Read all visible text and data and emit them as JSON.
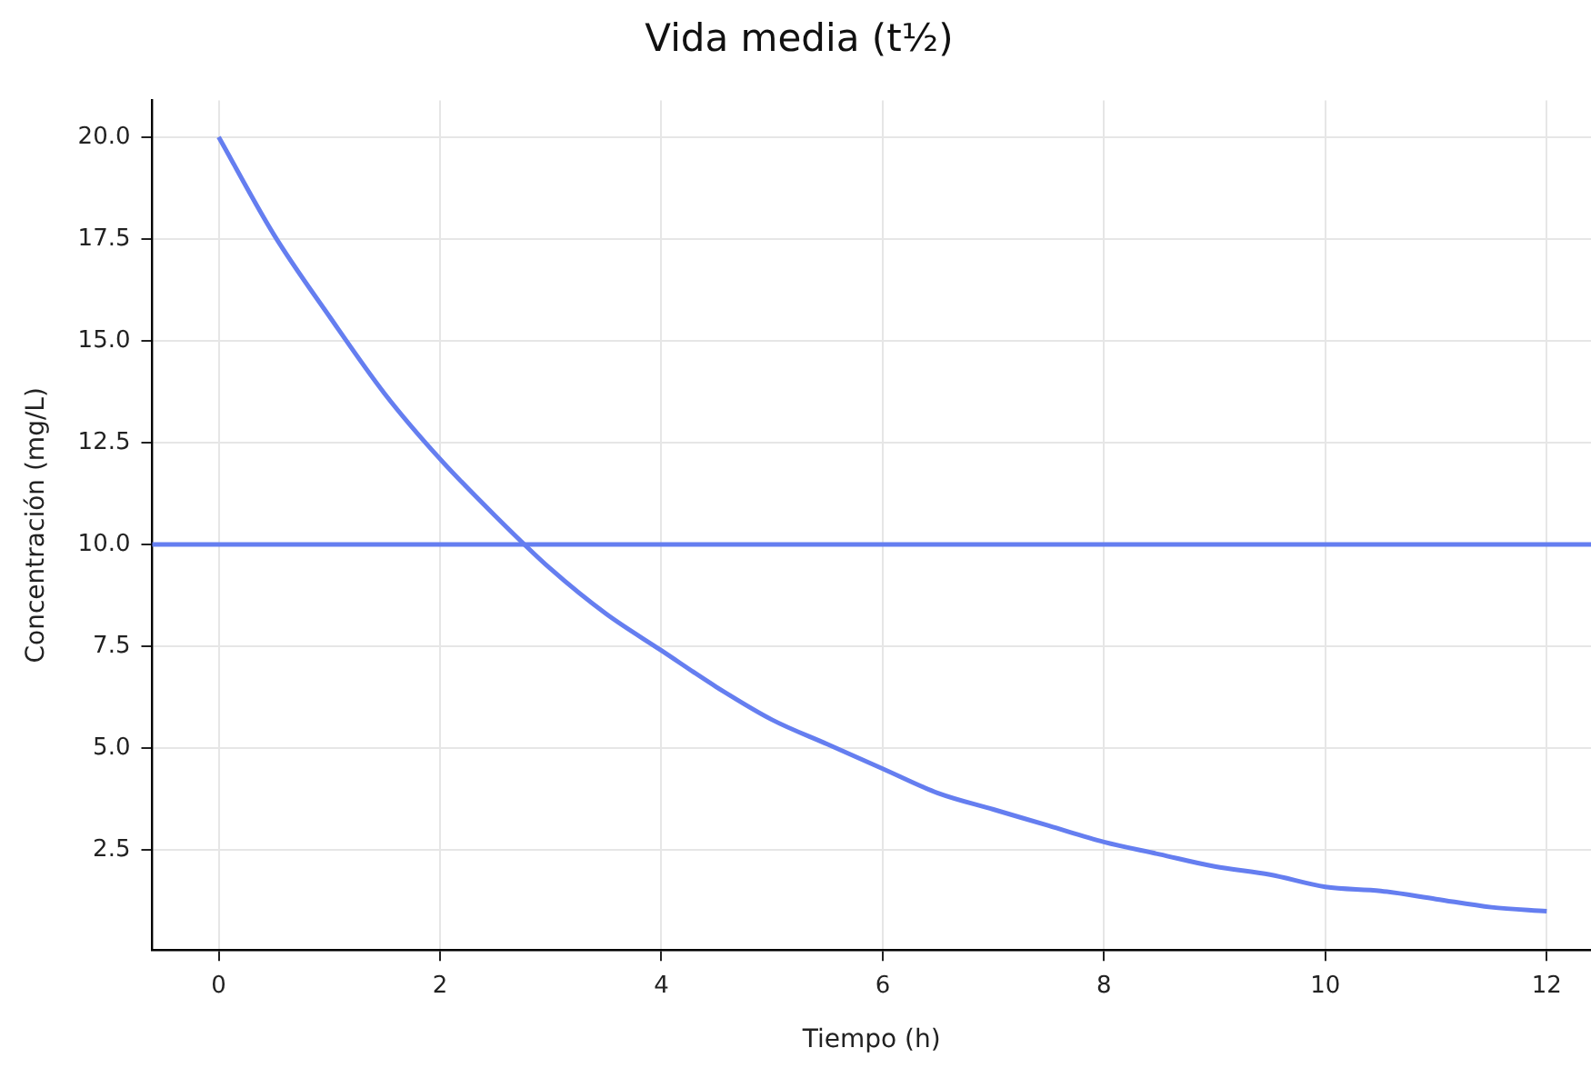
{
  "chart_data": {
    "type": "line",
    "title": "Vida media (t½)",
    "xlabel": "Tiempo (h)",
    "ylabel": "Concentración (mg/L)",
    "x": [
      0,
      0.5,
      1,
      1.5,
      2,
      2.5,
      3,
      3.5,
      4,
      4.5,
      5,
      5.5,
      6,
      6.5,
      7,
      7.5,
      8,
      8.5,
      9,
      9.5,
      10,
      10.5,
      11,
      11.5,
      12
    ],
    "series": [
      {
        "color": "#657ef0",
        "values": [
          20,
          17.6,
          15.6,
          13.7,
          12.1,
          10.7,
          9.4,
          8.3,
          7.4,
          6.5,
          5.7,
          5.1,
          4.5,
          3.9,
          3.5,
          3.1,
          2.7,
          2.4,
          2.1,
          1.9,
          1.6,
          1.5,
          1.3,
          1.1,
          1.0
        ]
      }
    ],
    "ref_lines": [
      {
        "axis": "y",
        "value": 10,
        "color": "#657ef0",
        "line_style": "solid"
      }
    ],
    "xlim": [
      -0.6,
      12.4
    ],
    "xticks": [
      0,
      2,
      4,
      6,
      8,
      10,
      12
    ],
    "ylim": [
      0.05,
      20.9
    ],
    "yticks": [
      2.5,
      {
        "value": 5,
        "label": "5.0"
      },
      7.5,
      {
        "value": 10,
        "label": "10.0"
      },
      12.5,
      {
        "value": 15,
        "label": "15.0"
      },
      17.5,
      {
        "value": 20,
        "label": "20.0"
      }
    ],
    "grid": true,
    "legend": false,
    "marker": "none",
    "line_style": "solid"
  }
}
